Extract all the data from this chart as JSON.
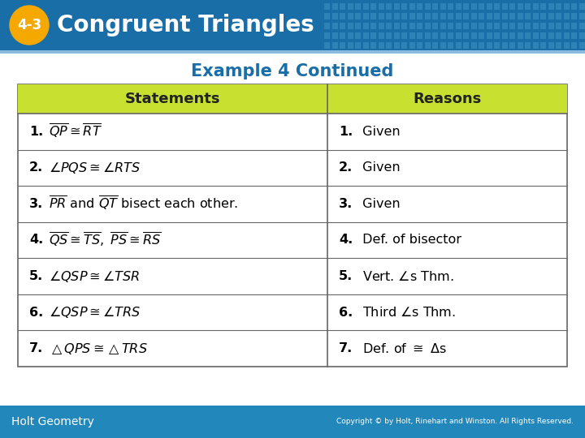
{
  "header_bg_color": "#1a6ea8",
  "header_text_color": "#ffffff",
  "badge_color": "#f5a800",
  "badge_text": "4-3",
  "header_title": "Congruent Triangles",
  "subtitle": "Example 4 Continued",
  "subtitle_color": "#1a6ea8",
  "table_header_bg": "#c8e030",
  "table_header_text_color": "#222222",
  "col1_header": "Statements",
  "col2_header": "Reasons",
  "statements_num": [
    "1.",
    "2.",
    "3.",
    "4.",
    "5.",
    "6.",
    "7."
  ],
  "statements_body": [
    "$\\overline{QP} \\cong \\overline{RT}$",
    "$\\angle PQS \\cong \\angle RTS$",
    "$\\overline{PR}$ and $\\overline{QT}$ bisect each other.",
    "$\\overline{QS} \\cong \\overline{TS},\\ \\overline{PS} \\cong \\overline{RS}$",
    "$\\angle QSP \\cong \\angle TSR$",
    "$\\angle QSP \\cong \\angle TRS$",
    "$\\triangle QPS \\cong \\triangle TRS$"
  ],
  "reasons_num": [
    "1.",
    "2.",
    "3.",
    "4.",
    "5.",
    "6.",
    "7."
  ],
  "reasons_body": [
    " Given",
    " Given",
    " Given",
    " Def. of bisector",
    " Vert. $\\angle$s Thm.",
    " Third $\\angle$s Thm.",
    " Def. of $\\cong$ $\\Delta$s"
  ],
  "table_border_color": "#666666",
  "body_bg": "#ffffff",
  "footer_bg": "#2288bb",
  "footer_text": "Holt Geometry",
  "footer_copyright": "Copyright © by Holt, Rinehart and Winston. All Rights Reserved.",
  "footer_text_color": "#ffffff",
  "footer_copyright_color": "#ffffff"
}
